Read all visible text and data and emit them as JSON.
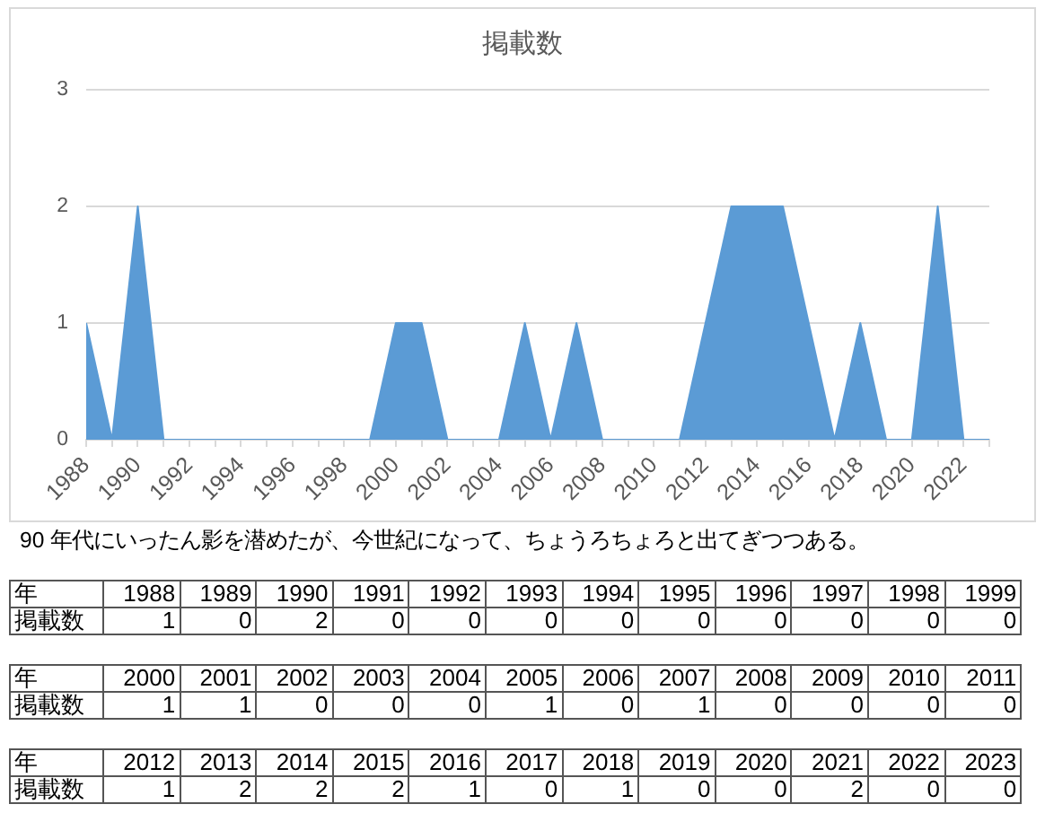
{
  "chart_data": [
    {
      "type": "area",
      "title": "掲載数",
      "annotations": [
        "90 年代にいったん影を潜めたが、今世紀になって、ちょうろちょろと出てぎつつある。"
      ],
      "x": [
        1988,
        1989,
        1990,
        1991,
        1992,
        1993,
        1994,
        1995,
        1996,
        1997,
        1998,
        1999,
        2000,
        2001,
        2002,
        2003,
        2004,
        2005,
        2006,
        2007,
        2008,
        2009,
        2010,
        2011,
        2012,
        2013,
        2014,
        2015,
        2016,
        2017,
        2018,
        2019,
        2020,
        2021,
        2022,
        2023
      ],
      "series": [
        {
          "color": "#5b9bd5",
          "values": [
            1,
            0,
            2,
            0,
            0,
            0,
            0,
            0,
            0,
            0,
            0,
            0,
            1,
            1,
            0,
            0,
            0,
            1,
            0,
            1,
            0,
            0,
            0,
            0,
            1,
            2,
            2,
            2,
            1,
            0,
            1,
            0,
            0,
            2,
            0,
            0
          ]
        }
      ],
      "xlim": [
        1988,
        2023
      ],
      "xticks": [
        1988,
        {
          "value": 1989,
          "label": null
        },
        1990,
        {
          "value": 1991,
          "label": null
        },
        1992,
        {
          "value": 1993,
          "label": null
        },
        1994,
        {
          "value": 1995,
          "label": null
        },
        1996,
        {
          "value": 1997,
          "label": null
        },
        1998,
        {
          "value": 1999,
          "label": null
        },
        2000,
        {
          "value": 2001,
          "label": null
        },
        2002,
        {
          "value": 2003,
          "label": null
        },
        2004,
        {
          "value": 2005,
          "label": null
        },
        2006,
        {
          "value": 2007,
          "label": null
        },
        2008,
        {
          "value": 2009,
          "label": null
        },
        2010,
        {
          "value": 2011,
          "label": null
        },
        2012,
        {
          "value": 2013,
          "label": null
        },
        2014,
        {
          "value": 2015,
          "label": null
        },
        2016,
        {
          "value": 2017,
          "label": null
        },
        2018,
        {
          "value": 2019,
          "label": null
        },
        2020,
        {
          "value": 2021,
          "label": null
        },
        2022,
        {
          "value": 2023,
          "label": null
        }
      ],
      "ylim": [
        0,
        3
      ],
      "yticks": [
        0,
        1,
        2,
        3
      ],
      "grid": "y"
    },
    {
      "type": "heatmap",
      "xlabel": "年",
      "categories": [
        "1988",
        "1989",
        "1990",
        "1991",
        "1992",
        "1993",
        "1994",
        "1995",
        "1996",
        "1997",
        "1998",
        "1999"
      ],
      "y_categories": [
        "掲載数"
      ],
      "cells": [
        [
          1,
          0,
          2,
          0,
          0,
          0,
          0,
          0,
          0,
          0,
          0,
          0
        ]
      ],
      "data_labels": true
    },
    {
      "type": "heatmap",
      "xlabel": "年",
      "categories": [
        "2000",
        "2001",
        "2002",
        "2003",
        "2004",
        "2005",
        "2006",
        "2007",
        "2008",
        "2009",
        "2010",
        "2011"
      ],
      "y_categories": [
        "掲載数"
      ],
      "cells": [
        [
          1,
          1,
          0,
          0,
          0,
          1,
          0,
          1,
          0,
          0,
          0,
          0
        ]
      ],
      "data_labels": true
    },
    {
      "type": "heatmap",
      "xlabel": "年",
      "categories": [
        "2012",
        "2013",
        "2014",
        "2015",
        "2016",
        "2017",
        "2018",
        "2019",
        "2020",
        "2021",
        "2022",
        "2023"
      ],
      "y_categories": [
        "掲載数"
      ],
      "cells": [
        [
          1,
          2,
          2,
          2,
          1,
          0,
          1,
          0,
          0,
          2,
          0,
          0
        ]
      ],
      "data_labels": true
    }
  ]
}
